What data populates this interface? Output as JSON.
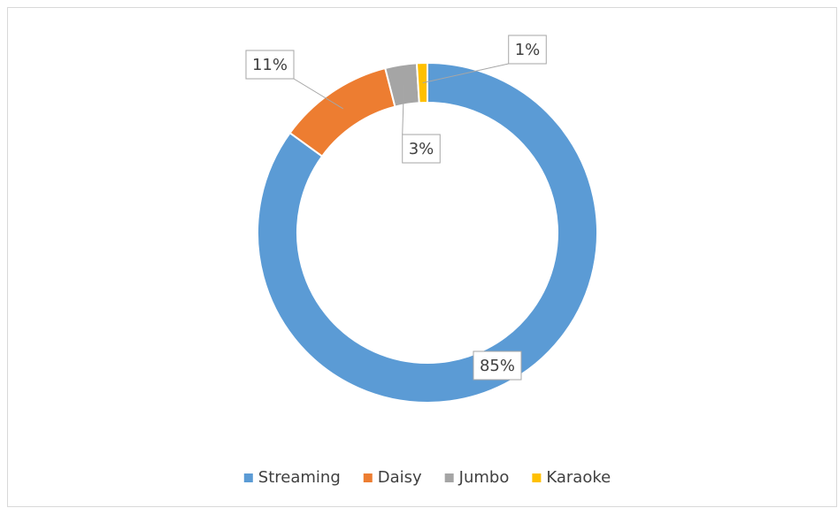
{
  "chart_data": {
    "type": "donut",
    "categories": [
      "Streaming",
      "Daisy",
      "Jumbo",
      "Karaoke"
    ],
    "values": [
      85,
      11,
      3,
      1
    ],
    "value_labels": [
      "85%",
      "11%",
      "3%",
      "1%"
    ],
    "colors": [
      "#5b9bd5",
      "#ed7d31",
      "#a5a5a5",
      "#ffc000"
    ],
    "legend": "bottom"
  }
}
